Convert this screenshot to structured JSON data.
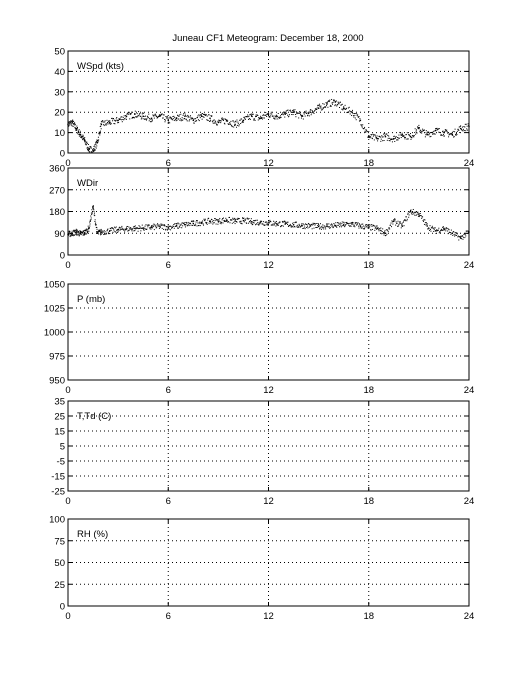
{
  "title": "Juneau CF1 Meteogram:  December 18, 2000",
  "colors": {
    "axis": "#000000",
    "grid": "#000000",
    "marker": "#000000",
    "background": "#ffffff"
  },
  "chart_data": [
    {
      "type": "scatter",
      "label": "WSpd (kts)",
      "xlim": [
        0,
        24
      ],
      "xticks": [
        0,
        6,
        12,
        18,
        24
      ],
      "ylim": [
        0,
        50
      ],
      "yticks": [
        0,
        10,
        20,
        30,
        40,
        50
      ],
      "grid": true,
      "x": [
        0,
        0.25,
        0.5,
        0.75,
        1,
        1.25,
        1.5,
        1.75,
        2,
        2.5,
        3,
        3.5,
        4,
        4.5,
        5,
        5.5,
        6,
        6.5,
        7,
        7.5,
        8,
        8.5,
        9,
        9.5,
        10,
        10.5,
        11,
        11.5,
        12,
        12.5,
        13,
        13.5,
        14,
        14.5,
        15,
        15.5,
        16,
        16.5,
        17,
        17.5,
        18,
        18.5,
        19,
        19.5,
        20,
        20.5,
        21,
        21.5,
        22,
        22.5,
        23,
        23.5,
        24
      ],
      "y": [
        14,
        15,
        12,
        9,
        6,
        2,
        1,
        5,
        14,
        15,
        16,
        18,
        19,
        18,
        17,
        18,
        16,
        17,
        18,
        16,
        18,
        17,
        15,
        16,
        14,
        16,
        18,
        17,
        19,
        18,
        19,
        20,
        18,
        20,
        22,
        24,
        25,
        22,
        20,
        16,
        8,
        7,
        8,
        7,
        9,
        8,
        12,
        9,
        11,
        10,
        9,
        12,
        13
      ]
    },
    {
      "type": "scatter",
      "label": "WDir",
      "xlim": [
        0,
        24
      ],
      "xticks": [
        0,
        6,
        12,
        18,
        24
      ],
      "ylim": [
        0,
        360
      ],
      "yticks": [
        0,
        90,
        180,
        270,
        360
      ],
      "grid": true,
      "x": [
        0,
        0.25,
        0.5,
        0.75,
        1,
        1.25,
        1.5,
        1.75,
        2,
        2.5,
        3,
        3.5,
        4,
        4.5,
        5,
        5.5,
        6,
        6.5,
        7,
        7.5,
        8,
        8.5,
        9,
        9.5,
        10,
        10.5,
        11,
        11.5,
        12,
        12.5,
        13,
        13.5,
        14,
        14.5,
        15,
        15.5,
        16,
        16.5,
        17,
        17.5,
        18,
        18.5,
        19,
        19.5,
        20,
        20.5,
        21,
        21.5,
        22,
        22.5,
        23,
        23.5,
        24
      ],
      "y": [
        85,
        90,
        95,
        88,
        92,
        110,
        200,
        90,
        95,
        100,
        105,
        108,
        110,
        112,
        115,
        118,
        115,
        120,
        125,
        130,
        135,
        140,
        140,
        145,
        140,
        142,
        138,
        135,
        133,
        130,
        128,
        125,
        122,
        120,
        118,
        120,
        122,
        125,
        128,
        120,
        115,
        110,
        90,
        140,
        120,
        180,
        170,
        120,
        100,
        110,
        90,
        70,
        95
      ]
    },
    {
      "type": "scatter",
      "label": "P (mb)",
      "xlim": [
        0,
        24
      ],
      "xticks": [
        0,
        6,
        12,
        18,
        24
      ],
      "ylim": [
        950,
        1050
      ],
      "yticks": [
        950,
        975,
        1000,
        1025,
        1050
      ],
      "grid": true,
      "x": [],
      "y": []
    },
    {
      "type": "scatter",
      "label": "T,Td (C)",
      "xlim": [
        0,
        24
      ],
      "xticks": [
        0,
        6,
        12,
        18,
        24
      ],
      "ylim": [
        -25,
        35
      ],
      "yticks": [
        -25,
        -15,
        -5,
        5,
        15,
        25,
        35
      ],
      "grid": true,
      "x": [],
      "y": []
    },
    {
      "type": "scatter",
      "label": "RH (%)",
      "xlim": [
        0,
        24
      ],
      "xticks": [
        0,
        6,
        12,
        18,
        24
      ],
      "ylim": [
        0,
        100
      ],
      "yticks": [
        0,
        25,
        50,
        75,
        100
      ],
      "grid": true,
      "x": [],
      "y": []
    }
  ]
}
